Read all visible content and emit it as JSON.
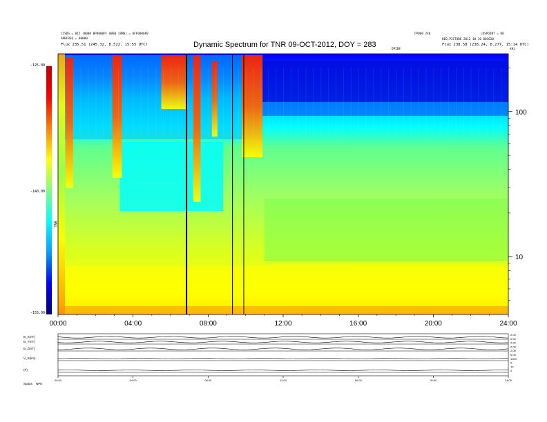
{
  "header": {
    "left_lines": [
      "CCSDS = 815 (0000 BP0000P) 0000 (BRW) = 0FF0000P0",
      "ARBFREQ = 00000",
      "Flux    235.51 (245.32, 8.522, 15:55 UTC)"
    ],
    "right_top": "LOSPOINT = 00",
    "right_mid": "REQ.PICTURE 2012 10 10 001620",
    "right_mid2": "FP000 240",
    "right_flux": "Flux    238.58 (238.24, 8.277, 15:14 UTC)",
    "title": "Dynamic Spectrum for TNR 09-OCT-2012, DOY = 283",
    "small_center_label": "DPIDE",
    "small_right_label": "kHz"
  },
  "colorbar": {
    "ticks": [
      "-125.00",
      "-140.00",
      "-155.00"
    ],
    "unit_label": "TNR",
    "colors": [
      "#00007f",
      "#0000ff",
      "#00a0ff",
      "#00ffff",
      "#7fff7f",
      "#ffff00",
      "#ff8000",
      "#ff0000",
      "#c00000"
    ]
  },
  "chart_data": {
    "type": "heatmap",
    "title": "Dynamic Spectrum for TNR 09-OCT-2012, DOY = 283",
    "x_ticks": [
      "00:00",
      "04:00",
      "08:00",
      "12:00",
      "16:00",
      "20:00",
      "24:00"
    ],
    "x_range_hours": [
      0,
      24
    ],
    "y_scale": "log",
    "y_unit": "kHz",
    "y_range": [
      4,
      250
    ],
    "y_ticks": [
      {
        "label": "100",
        "value": 100
      },
      {
        "label": "10",
        "value": 10
      }
    ],
    "color_range": [
      -155,
      -125
    ],
    "data_gaps_hours": [
      6.85,
      9.3,
      9.9
    ]
  },
  "bottom_panel": {
    "row_labels": [
      "B_X(nT)",
      "B_Y(nT)",
      "B_Z(nT)",
      "V_X(km)",
      "(P)",
      "Status"
    ],
    "row_values": [
      "",
      "",
      "",
      "",
      "",
      "NPE"
    ],
    "right_ticks": [
      "2.00",
      "0.00",
      "2.00",
      "0.00",
      "2.00",
      "0.00",
      "1000",
      "0",
      "10",
      "0"
    ],
    "x_ticks": [
      "00:00",
      "04:00",
      "08:00",
      "12:00",
      "16:00",
      "20:00",
      "24:00"
    ]
  }
}
